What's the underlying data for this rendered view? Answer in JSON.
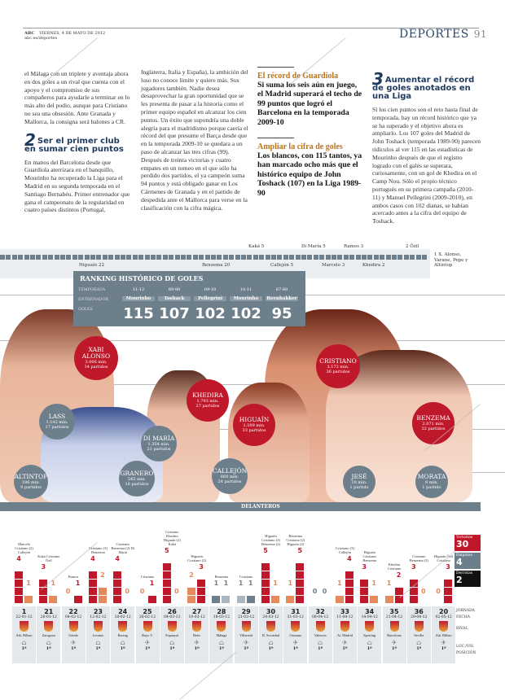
{
  "header": {
    "brand": "ABC",
    "date": "VIERNES, 4 DE MAYO DE 2012",
    "url": "abc.es/deportes",
    "section": "DEPORTES",
    "page": "91"
  },
  "col1": {
    "para1": "el Málaga con un triplete y aventaja ahora en dos goles a un rival que cuenta con el apoyo y el compromiso de sus compañeros para ayudarle a terminar en lo más alto del podio, aunque para Cristiano no sea una obsesión. Ante Granada y Mallorca, la consigna será balones a CR.",
    "h_num": "2",
    "h_text": "Ser el primer club en sumar cien puntos",
    "para2": "En manos del Barcelona desde que Guardiola aterrizara en el banquillo, Mourinho ha recuperado la Liga para el Madrid en su segunda temporada en el Santiago Bernabéu. Primer entrenador que gana el campeonato de la regularidad en cuatro países distintos (Portugal,"
  },
  "col2": {
    "para": "Inglaterra, Italia y España), la ambición del luso no conoce límite y quiere más. Sus jugadores también. Nadie desea desaprovechar la gran oportunidad que se les presenta de pasar a la historia como el primer equipo español en alcanzar los cien puntos. Un éxito que supondría una doble alegría para el madridismo porque caería el récord del que presume el Barça desde que en la temporada 2009-10 se quedara a un paso de alcanzar las tres cifras (99). Después de treinta victorias y cuatro empates en un torneo en el que sólo ha perdido dos partidos, el ya campeón suma 94 puntos y está obligado ganar en Los Cármenes de Granada y en el partido de despedida ante el Mallorca para verse en la clasificación con la cifra mágica."
  },
  "col3": {
    "t1": "El récord de Guardiola",
    "b1": "Si suma los seis aún en juego, el Madrid superará el techo de 99 puntos que logró el Barcelona en la temporada 2009-10",
    "t2": "Ampliar la cifra de goles",
    "b2": "Los blancos, con 115 tantos, ya han marcado ocho más que el histórico equipo de John Toshack (107) en la Liga 1989-90"
  },
  "col4": {
    "h_num": "3",
    "h_text": "Aumentar el récord de goles anotados en una Liga",
    "para": "Si los cien puntos son el reto hasta final de temporada, hay un récord histórico que ya se ha superado y el objetivo ahora es ampliarlo. Los 107 goles del Madrid de John Toshack (temporada 1989-90) parecen ridículos al ver 115 en las estadísticas de Mourinho después de que el registro logrado con el galés se superara, curiosamente, con un gol de Khedira en el Camp Nou. Sólo el propio técnico portugués en su primera campaña (2010-11) y Manuel Pellegrini (2009-2010), en ambos casos con 102 dianas, se habían acercado antes a la cifra del equipo de Toshack."
  },
  "goal_tracker": {
    "total": 115,
    "labels_top": [
      "Kaká 5",
      "Di María 5",
      "Ramos 3",
      "2 Özil"
    ],
    "labels_bottom": [
      "Higuaín 22",
      "Benzema 20",
      "Callejón 5",
      "Marcelo 3",
      "Khedira 2"
    ],
    "last": "1 X. Alonso, Varane, Pepe y Altintop"
  },
  "ranking": {
    "title": "RANKING HISTÓRICO DE GOLES",
    "row_labels": [
      "TEMPORADA",
      "ENTRENADOR",
      "GOLES"
    ],
    "rows": [
      {
        "season": "11-12",
        "coach": "Mourinho",
        "goals": "115"
      },
      {
        "season": "89-90",
        "coach": "Toshack",
        "goals": "107"
      },
      {
        "season": "09-10",
        "coach": "Pellegrini",
        "goals": "102"
      },
      {
        "season": "10-11",
        "coach": "Mourinho",
        "goals": "102"
      },
      {
        "season": "87-88",
        "coach": "Beenhakker",
        "goals": "95"
      }
    ]
  },
  "players": [
    {
      "name": "XABI ALONSO",
      "min": "3.006 min.",
      "games": "34 partidos",
      "color": "#c0182b"
    },
    {
      "name": "KHEDIRA",
      "min": "1.793 min.",
      "games": "27 partidos",
      "color": "#c0182b"
    },
    {
      "name": "HIGUAÍN",
      "min": "1.599 min.",
      "games": "33 partidos",
      "color": "#c0182b"
    },
    {
      "name": "CRISTIANO",
      "min": "3.172 min.",
      "games": "36 partidos",
      "color": "#c0182b"
    },
    {
      "name": "BENZEMA",
      "min": "2.071 min.",
      "games": "32 partidos",
      "color": "#c0182b"
    },
    {
      "name": "LASS",
      "min": "1.142 min.",
      "games": "17 partidos",
      "color": "#6e7f8c"
    },
    {
      "name": "DI MARÍA",
      "min": "1.354 min.",
      "games": "21 partidos",
      "color": "#6e7f8c"
    },
    {
      "name": "ALTINTOP",
      "min": "186 min.",
      "games": "9 partidos",
      "color": "#6e7f8c"
    },
    {
      "name": "GRANERO",
      "min": "545 min.",
      "games": "16 partidos",
      "color": "#6e7f8c"
    },
    {
      "name": "CALLEJÓN",
      "min": "660 min.",
      "games": "24 partidos",
      "color": "#6e7f8c"
    },
    {
      "name": "JESÉ",
      "min": "10 min.",
      "games": "1 partido",
      "color": "#6e7f8c"
    },
    {
      "name": "MORATA",
      "min": "9 min.",
      "games": "1 partido",
      "color": "#6e7f8c"
    }
  ],
  "delanteros": "DELANTEROS",
  "matches": [
    {
      "j": "1",
      "date": "22-01-12",
      "rival": "Ath. Bilbao",
      "loc": "home",
      "pos": "1º",
      "left": 4,
      "right": 1,
      "madrid": "left",
      "result": "W",
      "scorers": "Marcelo Cristiano (2) Callejón"
    },
    {
      "j": "21",
      "date": "28-01-12",
      "rival": "Zaragoza",
      "loc": "home",
      "pos": "1º",
      "left": 3,
      "right": 1,
      "madrid": "left",
      "result": "W",
      "scorers": "Kaká Cristiano Özil"
    },
    {
      "j": "22",
      "date": "04-02-12",
      "rival": "Getafe",
      "loc": "away",
      "pos": "1º",
      "left": 0,
      "right": 1,
      "madrid": "right",
      "result": "W",
      "scorers": "Ramos"
    },
    {
      "j": "23",
      "date": "12-02-12",
      "rival": "Levante",
      "loc": "home",
      "pos": "1º",
      "left": 4,
      "right": 2,
      "madrid": "left",
      "result": "W",
      "scorers": "Cristiano (3) Benzema"
    },
    {
      "j": "24",
      "date": "18-02-12",
      "rival": "Racing",
      "loc": "home",
      "pos": "1º",
      "left": 4,
      "right": 0,
      "madrid": "left",
      "result": "W",
      "scorers": "Cristiano Benzema (2) Di María"
    },
    {
      "j": "25",
      "date": "26-02-12",
      "rival": "Rayo V.",
      "loc": "away",
      "pos": "1º",
      "left": 0,
      "right": 1,
      "madrid": "right",
      "result": "W",
      "scorers": "Cristiano"
    },
    {
      "j": "26",
      "date": "04-03-12",
      "rival": "Espanyol",
      "loc": "home",
      "pos": "1º",
      "left": 5,
      "right": 0,
      "madrid": "left",
      "result": "W",
      "scorers": "Cristiano Khedira Higuaín (2) Kaká"
    },
    {
      "j": "27",
      "date": "10-03-12",
      "rival": "Betis",
      "loc": "away",
      "pos": "1º",
      "left": 2,
      "right": 3,
      "madrid": "right",
      "result": "W",
      "scorers": "Higuaín Cristiano (2)"
    },
    {
      "j": "28",
      "date": "18-03-12",
      "rival": "Málaga",
      "loc": "home",
      "pos": "1º",
      "left": 1,
      "right": 1,
      "madrid": "left",
      "result": "D",
      "scorers": "Benzema"
    },
    {
      "j": "29",
      "date": "21-03-12",
      "rival": "Villarreal",
      "loc": "away",
      "pos": "1º",
      "left": 1,
      "right": 1,
      "madrid": "right",
      "result": "D",
      "scorers": "Cristiano"
    },
    {
      "j": "30",
      "date": "24-03-12",
      "rival": "R. Sociedad",
      "loc": "home",
      "pos": "1º",
      "left": 5,
      "right": 1,
      "madrid": "left",
      "result": "W",
      "scorers": "Higuaín Cristiano (2) Benzema (2)"
    },
    {
      "j": "31",
      "date": "31-03-12",
      "rival": "Osasuna",
      "loc": "away",
      "pos": "1º",
      "left": 1,
      "right": 5,
      "madrid": "right",
      "result": "W",
      "scorers": "Benzema Cristiano (2) Higuaín (2)"
    },
    {
      "j": "32",
      "date": "08-04-12",
      "rival": "Valencia",
      "loc": "home",
      "pos": "1º",
      "left": 0,
      "right": 0,
      "madrid": "left",
      "result": "D",
      "scorers": ""
    },
    {
      "j": "33",
      "date": "11-04-12",
      "rival": "At. Madrid",
      "loc": "away",
      "pos": "1º",
      "left": 1,
      "right": 4,
      "madrid": "right",
      "result": "W",
      "scorers": "Cristiano (3) Callejón"
    },
    {
      "j": "34",
      "date": "14-04-12",
      "rival": "Sporting",
      "loc": "home",
      "pos": "1º",
      "left": 3,
      "right": 1,
      "madrid": "left",
      "result": "W",
      "scorers": "Higuaín Cristiano Benzema"
    },
    {
      "j": "35",
      "date": "21-04-12",
      "rival": "Barcelona",
      "loc": "away",
      "pos": "1º",
      "left": 1,
      "right": 2,
      "madrid": "right",
      "result": "W",
      "scorers": "Khedira Cristiano"
    },
    {
      "j": "36",
      "date": "29-04-12",
      "rival": "Sevilla",
      "loc": "home",
      "pos": "1º",
      "left": 3,
      "right": 0,
      "madrid": "left",
      "result": "W",
      "scorers": "Cristiano Benzema (2)"
    },
    {
      "j": "20",
      "date": "02-05-12",
      "rival": "Ath. Bilbao",
      "loc": "away",
      "pos": "1º",
      "left": 0,
      "right": 3,
      "madrid": "right",
      "result": "W",
      "scorers": "Higuaín Özil Cristiano"
    }
  ],
  "row_labels": [
    "JORNADA",
    "FECHA",
    "RIVAL",
    "LOC./VIS.",
    "POSICIÓN"
  ],
  "summary": [
    {
      "label": "Victorias",
      "value": "30",
      "color": "#c0182b"
    },
    {
      "label": "Empates",
      "value": "4",
      "color": "#6e7f8c"
    },
    {
      "label": "Derrotas",
      "value": "2",
      "color": "#111111"
    }
  ],
  "watermark": "ABC",
  "colors": {
    "red": "#c0182b",
    "orange": "#e58a5c",
    "gray": "#6e7f8c",
    "lightgray": "#a9b6bf",
    "navy": "#1f3a5f"
  }
}
